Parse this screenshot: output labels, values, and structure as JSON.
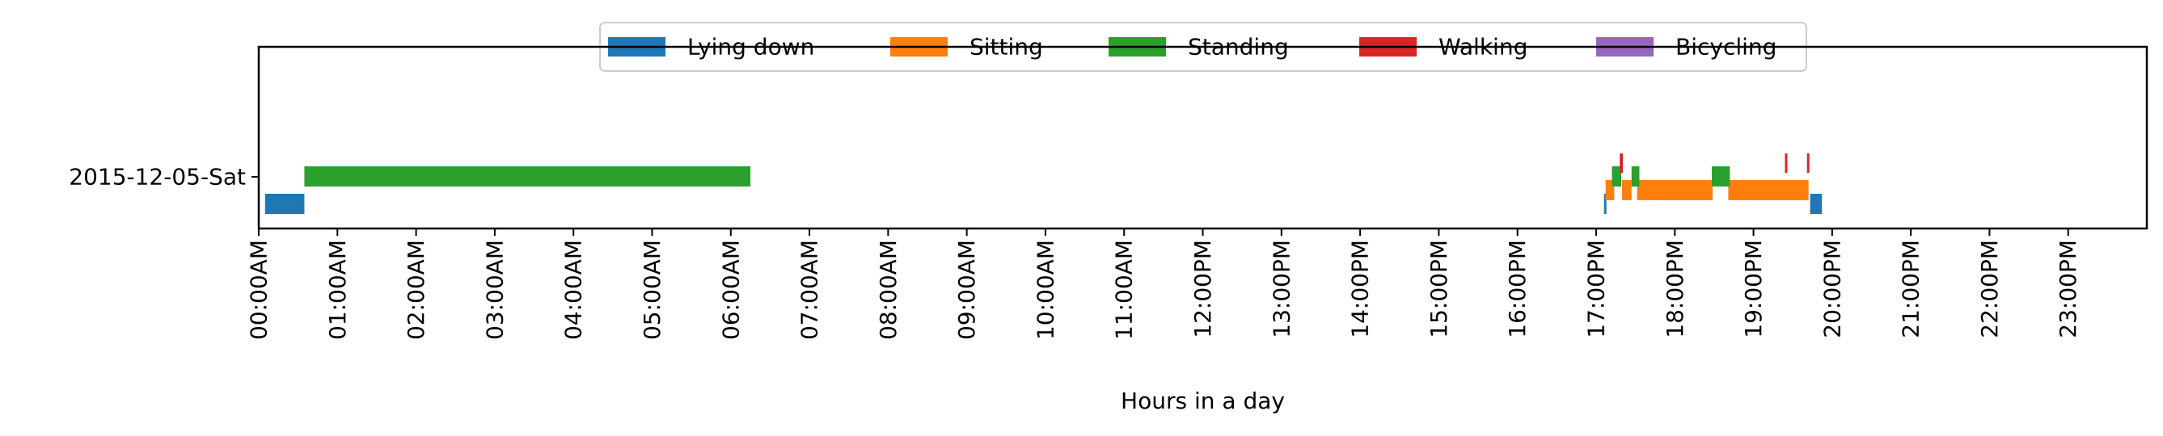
{
  "chart_data": {
    "type": "timeline",
    "xlabel": "Hours in a day",
    "xlim_hours": [
      0,
      24
    ],
    "x_ticks": [
      "00:00AM",
      "01:00AM",
      "02:00AM",
      "03:00AM",
      "04:00AM",
      "05:00AM",
      "06:00AM",
      "07:00AM",
      "08:00AM",
      "09:00AM",
      "10:00AM",
      "11:00AM",
      "12:00PM",
      "13:00PM",
      "14:00PM",
      "15:00PM",
      "16:00PM",
      "17:00PM",
      "18:00PM",
      "19:00PM",
      "20:00PM",
      "21:00PM",
      "22:00PM",
      "23:00PM"
    ],
    "y_label": "2015-12-05-Sat",
    "legend_position": "top-center",
    "series": [
      {
        "name": "Lying down",
        "color": "#1f77b4",
        "intervals": [
          [
            0.08,
            0.58
          ],
          [
            17.1,
            17.13
          ],
          [
            19.72,
            19.87
          ]
        ]
      },
      {
        "name": "Sitting",
        "color": "#ff7f0e",
        "intervals": [
          [
            17.12,
            17.23
          ],
          [
            17.33,
            17.45
          ],
          [
            17.52,
            18.48
          ],
          [
            18.68,
            19.7
          ]
        ]
      },
      {
        "name": "Standing",
        "color": "#2ca02c",
        "intervals": [
          [
            0.58,
            6.25
          ],
          [
            17.2,
            17.32
          ],
          [
            17.45,
            17.55
          ],
          [
            18.47,
            18.7
          ]
        ]
      },
      {
        "name": "Walking",
        "color": "#d62728",
        "intervals": [
          [
            17.3,
            17.34
          ],
          [
            19.4,
            19.43
          ],
          [
            19.68,
            19.71
          ]
        ]
      },
      {
        "name": "Bicycling",
        "color": "#9467bd",
        "intervals": []
      }
    ]
  }
}
